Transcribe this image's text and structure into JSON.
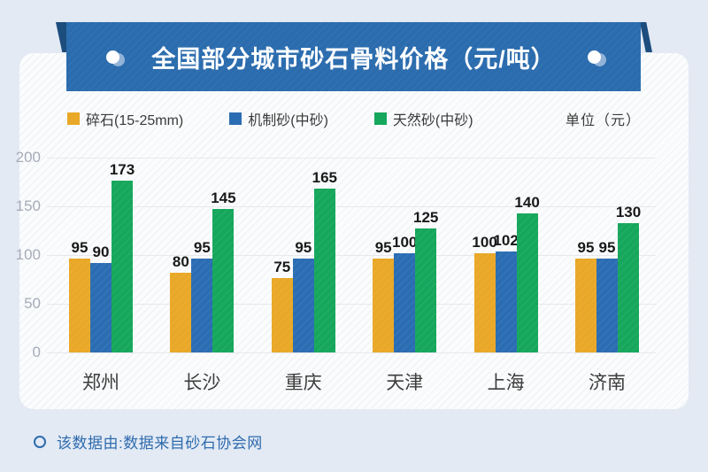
{
  "banner": {
    "title": "全国部分城市砂石骨料价格（元/吨）"
  },
  "unit_label": "单位（元）",
  "footer": {
    "text": "该数据由:数据来自砂石协会网"
  },
  "colors": {
    "background": "#e3eaf4",
    "card": "#fbfcfd",
    "banner": "#2b6cae",
    "ribbon_fold": "#1c4d7d",
    "series_yellow": "#e9a827",
    "series_blue": "#2b6db3",
    "series_green": "#16a75c",
    "footer_text": "#2e6bad",
    "gridline": "#e6e8ed",
    "tick_text": "#a6acb8"
  },
  "chart_data": {
    "type": "bar",
    "title": "全国部分城市砂石骨料价格（元/吨）",
    "categories": [
      "郑州",
      "长沙",
      "重庆",
      "天津",
      "上海",
      "济南"
    ],
    "series": [
      {
        "name": "碎石(15-25mm)",
        "color": "#e9a827",
        "values": [
          95,
          80,
          75,
          95,
          100,
          95
        ]
      },
      {
        "name": "机制砂(中砂)",
        "color": "#2b6db3",
        "values": [
          90,
          95,
          95,
          100,
          102,
          95
        ]
      },
      {
        "name": "天然砂(中砂)",
        "color": "#16a75c",
        "values": [
          173,
          145,
          165,
          125,
          140,
          130
        ]
      }
    ],
    "xlabel": "",
    "ylabel": "",
    "y_ticks": [
      0,
      50,
      100,
      150,
      200
    ],
    "ylim": [
      0,
      200
    ],
    "grid": true,
    "legend_position": "top",
    "value_labels": true
  }
}
